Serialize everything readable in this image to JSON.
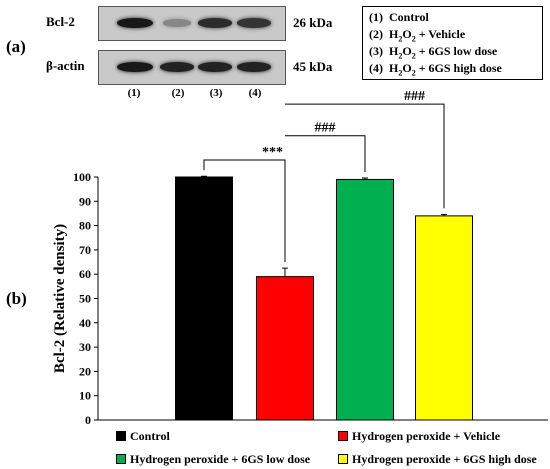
{
  "panel_a": {
    "label": "(a)",
    "blots": [
      {
        "name": "Bcl-2",
        "kda": "26 kDa",
        "intensity": [
          0.95,
          0.35,
          0.85,
          0.8
        ]
      },
      {
        "name": "β-actin",
        "kda": "45 kDa",
        "intensity": [
          0.95,
          0.9,
          0.9,
          0.9
        ]
      }
    ],
    "lanes": [
      "(1)",
      "(2)",
      "(3)",
      "(4)"
    ],
    "legend": [
      {
        "num": "(1)",
        "parts": [
          {
            "t": "Control"
          }
        ]
      },
      {
        "num": "(2)",
        "parts": [
          {
            "t": "H"
          },
          {
            "sub": "2"
          },
          {
            "t": "O"
          },
          {
            "sub": "2"
          },
          {
            "t": " + Vehicle"
          }
        ]
      },
      {
        "num": "(3)",
        "parts": [
          {
            "t": "H"
          },
          {
            "sub": "2"
          },
          {
            "t": "O"
          },
          {
            "sub": "2"
          },
          {
            "t": " + 6GS low dose"
          }
        ]
      },
      {
        "num": "(4)",
        "parts": [
          {
            "t": "H"
          },
          {
            "sub": "2"
          },
          {
            "t": "O"
          },
          {
            "sub": "2"
          },
          {
            "t": " + 6GS high dose"
          }
        ]
      }
    ]
  },
  "panel_b": {
    "label": "(b)"
  },
  "chart_data": {
    "type": "bar",
    "categories": [
      "Control",
      "Hydrogen peroxide + Vehicle",
      "Hydrogen peroxide + 6GS low dose",
      "Hydrogen peroxide + 6GS high dose"
    ],
    "values": [
      100,
      59,
      99,
      84
    ],
    "errors": [
      0.3,
      3.5,
      0.6,
      0.6
    ],
    "colors": [
      "#000000",
      "#ff0000",
      "#00b050",
      "#ffff00"
    ],
    "ylabel": "Bcl-2 (Relative density)",
    "ylim": [
      0,
      100
    ],
    "yticks": [
      0,
      10,
      20,
      30,
      40,
      50,
      60,
      70,
      80,
      90,
      100
    ],
    "significance": [
      {
        "from": 0,
        "to": 1,
        "label": "***"
      },
      {
        "from": 1,
        "to": 2,
        "label": "###"
      },
      {
        "from": 1,
        "to": 3,
        "label": "###"
      }
    ],
    "legend": [
      "Control",
      "Hydrogen peroxide + Vehicle",
      "Hydrogen peroxide + 6GS low dose",
      "Hydrogen peroxide + 6GS high dose"
    ]
  }
}
